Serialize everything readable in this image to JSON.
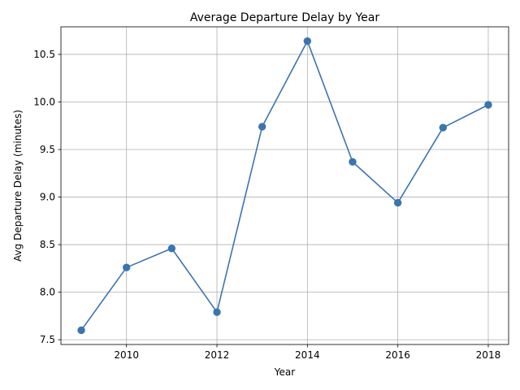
{
  "chart_data": {
    "type": "line",
    "title": "Average Departure Delay by Year",
    "xlabel": "Year",
    "ylabel": "Avg Departure Delay (minutes)",
    "x": [
      2009,
      2010,
      2011,
      2012,
      2013,
      2014,
      2015,
      2016,
      2017,
      2018
    ],
    "series": [
      {
        "name": "Avg Departure Delay",
        "values": [
          7.6,
          8.26,
          8.46,
          7.79,
          9.74,
          10.64,
          9.37,
          8.94,
          9.73,
          9.97
        ],
        "color": "#3b75af",
        "marker": "circle"
      }
    ],
    "xlim": [
      2008.55,
      2018.45
    ],
    "ylim": [
      7.45,
      10.79
    ],
    "xticks": [
      2010,
      2012,
      2014,
      2016,
      2018
    ],
    "xtick_labels": [
      "2010",
      "2012",
      "2014",
      "2016",
      "2018"
    ],
    "yticks": [
      7.5,
      8.0,
      8.5,
      9.0,
      9.5,
      10.0,
      10.5
    ],
    "ytick_labels": [
      "7.5",
      "8.0",
      "8.5",
      "9.0",
      "9.5",
      "10.0",
      "10.5"
    ],
    "grid": true,
    "grid_color": "#b0b0b0"
  }
}
